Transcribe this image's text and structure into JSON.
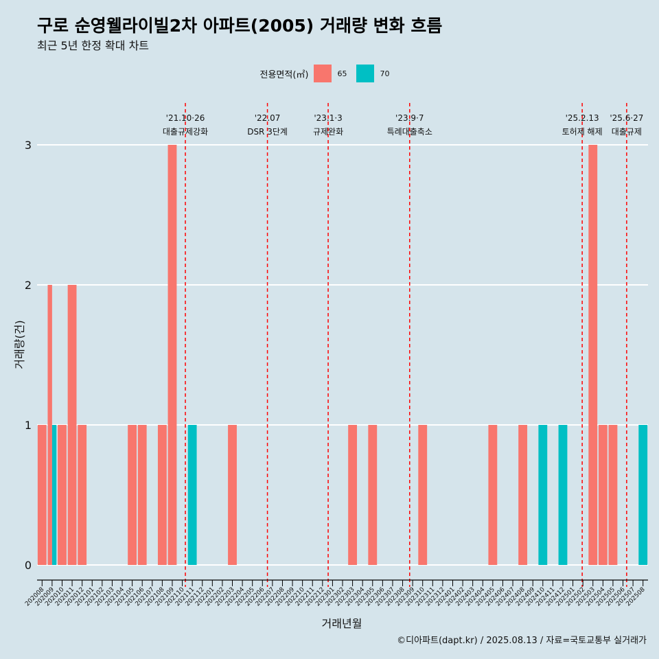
{
  "chart_data": {
    "type": "bar",
    "title": "구로 순영웰라이빌2차 아파트(2005) 거래량 변화 흐름",
    "subtitle": "최근 5년 한정 확대 차트",
    "xlabel": "거래년월",
    "ylabel": "거래량(건)",
    "ylim": [
      0,
      3
    ],
    "yticks": [
      "0",
      "1",
      "2",
      "3"
    ],
    "grid": "horizontal",
    "legend": {
      "title": "전용면적(㎡)",
      "position": "top",
      "items": [
        {
          "label": "65",
          "color": "#f8766d"
        },
        {
          "label": "70",
          "color": "#00bfc4"
        }
      ]
    },
    "categories": [
      "202008",
      "202009",
      "202010",
      "202011",
      "202012",
      "202101",
      "202102",
      "202103",
      "202104",
      "202105",
      "202106",
      "202107",
      "202108",
      "202109",
      "202110",
      "202111",
      "202112",
      "202201",
      "202202",
      "202203",
      "202204",
      "202205",
      "202206",
      "202207",
      "202208",
      "202209",
      "202210",
      "202211",
      "202212",
      "202301",
      "202302",
      "202303",
      "202304",
      "202305",
      "202306",
      "202307",
      "202308",
      "202309",
      "202310",
      "202311",
      "202312",
      "202401",
      "202402",
      "202403",
      "202404",
      "202405",
      "202406",
      "202407",
      "202408",
      "202409",
      "202410",
      "202411",
      "202412",
      "202501",
      "202502",
      "202503",
      "202504",
      "202505",
      "202506",
      "202507",
      "202508"
    ],
    "series": [
      {
        "name": "65",
        "color": "#f8766d",
        "values": [
          1,
          2,
          1,
          2,
          1,
          0,
          0,
          0,
          0,
          1,
          1,
          0,
          1,
          3,
          0,
          0,
          0,
          0,
          0,
          1,
          0,
          0,
          0,
          0,
          0,
          0,
          0,
          0,
          0,
          0,
          0,
          1,
          0,
          1,
          0,
          0,
          0,
          0,
          1,
          0,
          0,
          0,
          0,
          0,
          0,
          1,
          0,
          0,
          1,
          0,
          0,
          0,
          0,
          0,
          0,
          3,
          1,
          1,
          0,
          0,
          0
        ]
      },
      {
        "name": "70",
        "color": "#00bfc4",
        "values": [
          0,
          1,
          0,
          0,
          0,
          0,
          0,
          0,
          0,
          0,
          0,
          0,
          0,
          0,
          0,
          1,
          0,
          0,
          0,
          0,
          0,
          0,
          0,
          0,
          0,
          0,
          0,
          0,
          0,
          0,
          0,
          0,
          0,
          0,
          0,
          0,
          0,
          0,
          0,
          0,
          0,
          0,
          0,
          0,
          0,
          0,
          0,
          0,
          0,
          0,
          1,
          0,
          1,
          0,
          0,
          0,
          0,
          0,
          0,
          0,
          1
        ]
      }
    ],
    "annotations": [
      {
        "date": "2021-10-26",
        "line1": "'21.10·26",
        "line2": "대출규제강화"
      },
      {
        "date": "2022-07-01",
        "line1": "'22.07",
        "line2": "DSR 3단계"
      },
      {
        "date": "2023-01-03",
        "line1": "'23.1·3",
        "line2": "규제완화"
      },
      {
        "date": "2023-09-07",
        "line1": "'23.9·7",
        "line2": "특례대출축소"
      },
      {
        "date": "2025-02-13",
        "line1": "'25.2.13",
        "line2": "토허제 해제"
      },
      {
        "date": "2025-06-27",
        "line1": "'25.6·27",
        "line2": "대출규제"
      }
    ],
    "annotation_color": "#ff0000"
  },
  "caption": "©디아파트(dapt.kr) / 2025.08.13 / 자료=국토교통부 실거래가"
}
